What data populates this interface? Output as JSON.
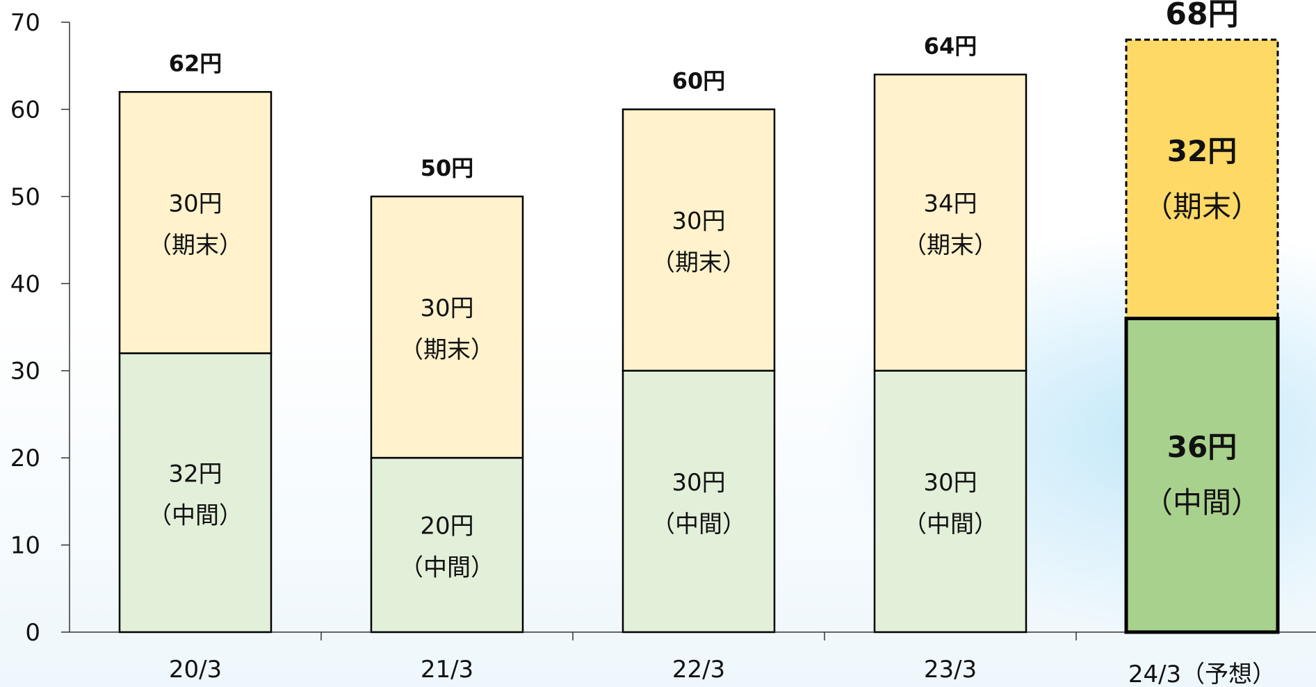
{
  "chart_data": {
    "type": "bar",
    "stacked": true,
    "categories": [
      "20/3",
      "21/3",
      "22/3",
      "23/3",
      "24/3（予想）"
    ],
    "series": [
      {
        "values": [
          32,
          20,
          30,
          30,
          36
        ],
        "labels": [
          "32円",
          "20円",
          "30円",
          "30円",
          "36円"
        ],
        "sublabel": "（中間）"
      },
      {
        "values": [
          30,
          30,
          30,
          34,
          32
        ],
        "labels": [
          "30円",
          "30円",
          "30円",
          "34円",
          "32円"
        ],
        "sublabel": "（期末）"
      }
    ],
    "totals": [
      62,
      50,
      60,
      64,
      68
    ],
    "total_labels": [
      "62円",
      "50円",
      "60円",
      "64円",
      "68円"
    ],
    "ylim": [
      0,
      70
    ],
    "yticks": [
      0,
      10,
      20,
      30,
      40,
      50,
      60,
      70
    ],
    "grid": false,
    "legend": "none",
    "highlight_index": 4,
    "colors": {
      "bottom": "#e2efd9",
      "top": "#fff2cc",
      "bottom_highlight": "#a9d18e",
      "top_highlight": "#ffd966",
      "border": "#000000"
    }
  }
}
